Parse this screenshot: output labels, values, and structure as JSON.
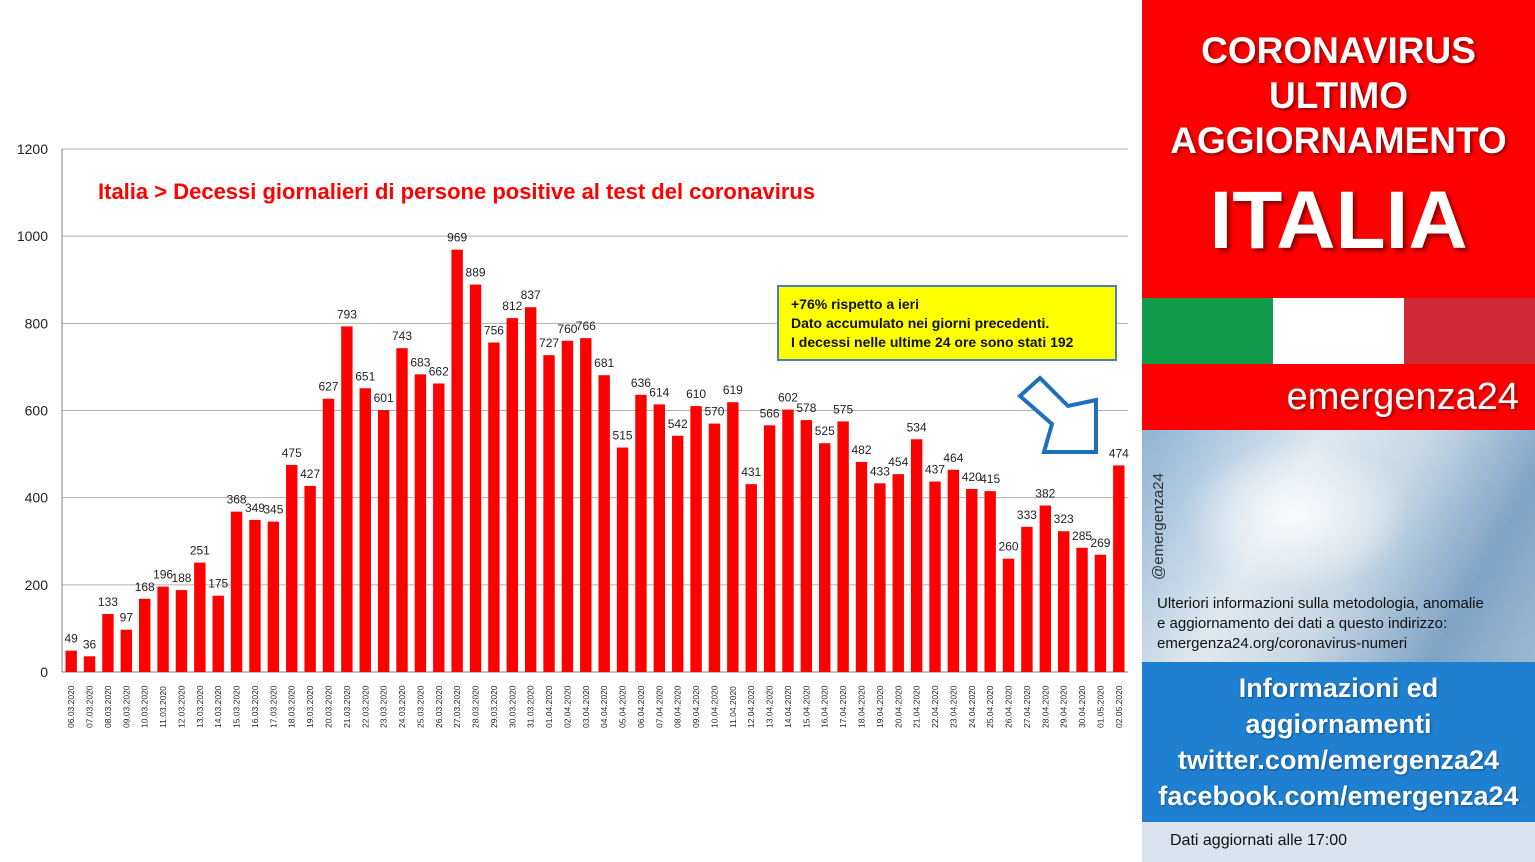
{
  "chart_data": {
    "type": "bar",
    "title": "Italia > Decessi giornalieri di persone positive al test del coronavirus",
    "xlabel": "",
    "ylabel": "",
    "ylim": [
      0,
      1200
    ],
    "yticks": [
      0,
      200,
      400,
      600,
      800,
      1000,
      1200
    ],
    "grid": true,
    "bar_color": "#ff0000",
    "categories": [
      "06.03.2020",
      "07.03.2020",
      "08.03.2020",
      "09.03.2020",
      "10.03.2020",
      "11.03.2020",
      "12.03.2020",
      "13.03.2020",
      "14.03.2020",
      "15.03.2020",
      "16.03.2020",
      "17.03.2020",
      "18.03.2020",
      "19.03.2020",
      "20.03.2020",
      "21.03.2020",
      "22.03.2020",
      "23.03.2020",
      "24.03.2020",
      "25.03.2020",
      "26.03.2020",
      "27.03.2020",
      "28.03.2020",
      "29.03.2020",
      "30.03.2020",
      "31.03.2020",
      "01.04.2020",
      "02.04.2020",
      "03.04.2020",
      "04.04.2020",
      "05.04.2020",
      "06.04.2020",
      "07.04.2020",
      "08.04.2020",
      "09.04.2020",
      "10.04.2020",
      "11.04.2020",
      "12.04.2020",
      "13.04.2020",
      "14.04.2020",
      "15.04.2020",
      "16.04.2020",
      "17.04.2020",
      "18.04.2020",
      "19.04.2020",
      "20.04.2020",
      "21.04.2020",
      "22.04.2020",
      "23.04.2020",
      "24.04.2020",
      "25.04.2020",
      "26.04.2020",
      "27.04.2020",
      "28.04.2020",
      "29.04.2020",
      "30.04.2020",
      "01.05.2020",
      "02.05.2020"
    ],
    "values": [
      49,
      36,
      133,
      97,
      168,
      196,
      188,
      251,
      175,
      368,
      349,
      345,
      475,
      427,
      627,
      793,
      651,
      601,
      743,
      683,
      662,
      969,
      889,
      756,
      812,
      837,
      727,
      760,
      766,
      681,
      515,
      636,
      614,
      542,
      610,
      570,
      619,
      431,
      566,
      602,
      578,
      525,
      575,
      482,
      433,
      454,
      534,
      437,
      464,
      420,
      415,
      260,
      333,
      382,
      323,
      285,
      269,
      474
    ]
  },
  "callout": {
    "lines": [
      "+76% rispetto a ieri",
      "Dato accumulato  nei giorni precedenti.",
      "I decessi nelle ultime 24 ore sono stati  192"
    ],
    "bg": "#ffff00",
    "border": "#4a7ebb"
  },
  "arrow": {
    "icon": "arrow-down-right-icon",
    "color": "#1f6fbf"
  },
  "side_panel": {
    "banner": {
      "line1": "CORONAVIRUS",
      "line2": "ULTIMO",
      "line3": "AGGIORNAMENTO",
      "country": "ITALIA",
      "bg": "#ff0000"
    },
    "flag": {
      "green": "#109a4a",
      "white": "#ffffff",
      "red": "#cf2b37"
    },
    "brand": "emergenza24",
    "handle": "@emergenza24",
    "info": {
      "line1": "Ulteriori informazioni sulla metodologia, anomalie",
      "line2": "e aggiornamento dei dati a questo indirizzo:",
      "line3": "emergenza24.org/coronavirus-numeri"
    },
    "social": {
      "line1": "Informazioni ed",
      "line2": "aggiornamenti",
      "line3": "twitter.com/emergenza24",
      "line4": "facebook.com/emergenza24",
      "bg": "#1f7fd0"
    },
    "updated": "Dati aggiornati alle 17:00"
  }
}
